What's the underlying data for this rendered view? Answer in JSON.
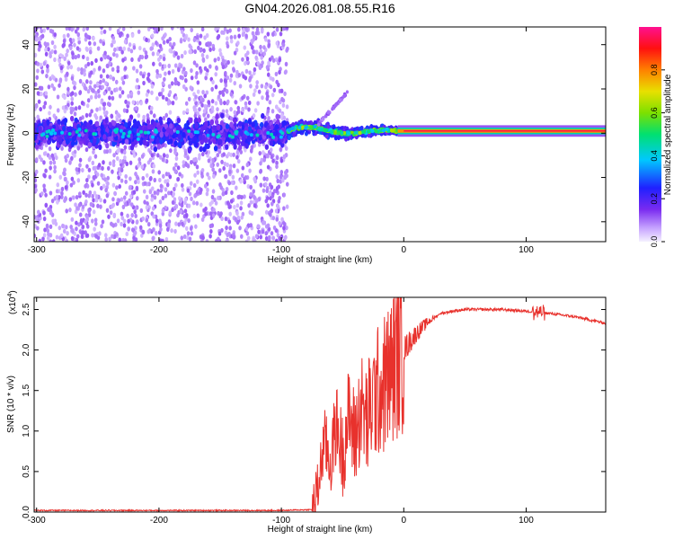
{
  "title": "GN04.2026.081.08.55.R16",
  "colors": {
    "axis": "#000000",
    "snr_line": "#e8312c",
    "background": "#ffffff"
  },
  "chart_data": [
    {
      "type": "heatmap",
      "name": "spectrogram",
      "xlabel": "Height of straight line (km)",
      "ylabel": "Frequency (Hz)",
      "xlim": [
        -302,
        165
      ],
      "ylim": [
        -49,
        48
      ],
      "xticks": [
        -300,
        -200,
        -100,
        0,
        100
      ],
      "yticks": [
        -40,
        -20,
        0,
        20,
        40
      ],
      "xtick_labels": [
        "-300",
        "-200",
        "-100",
        "0",
        "100"
      ],
      "ytick_labels": [
        "-40",
        "-20",
        "0",
        "20",
        "40"
      ],
      "colormap": "rainbow (purple-blue-cyan-green-yellow-red-magenta)",
      "colorbar": {
        "label": "Normalized spectral amplitude",
        "range": [
          0,
          1
        ],
        "ticks": [
          0.0,
          0.2,
          0.4,
          0.6,
          0.8
        ],
        "tick_labels": [
          "0.0",
          "0.2",
          "0.4",
          "0.6",
          "0.8"
        ]
      },
      "features": [
        {
          "region": "-302 to -95 km",
          "description": "broadband noise, low amplitude scatter"
        },
        {
          "region": "-95 to 0 km",
          "description": "signal emerges around 0 Hz with oscillation"
        },
        {
          "region": "0 to 165 km",
          "description": "strong narrow line at ~1 Hz, amplitude near 1.0"
        }
      ]
    },
    {
      "type": "line",
      "name": "snr",
      "xlabel": "Height of straight line (km)",
      "ylabel": "SNR (10 * v/v)",
      "y_multiplier": "(x10",
      "y_multiplier_exp": "4",
      "y_multiplier_close": ")",
      "xlim": [
        -302,
        165
      ],
      "ylim": [
        0,
        2.65
      ],
      "xticks": [
        -300,
        -200,
        -100,
        0,
        100
      ],
      "yticks": [
        0.0,
        0.5,
        1.0,
        1.5,
        2.0,
        2.5
      ],
      "xtick_labels": [
        "-300",
        "-200",
        "-100",
        "0",
        "100"
      ],
      "ytick_labels": [
        "0.0",
        "0.5",
        "1.0",
        "1.5",
        "2.0",
        "2.5"
      ],
      "series": [
        {
          "name": "SNR",
          "x": [
            -302,
            -100,
            -75,
            -70,
            -65,
            -60,
            -55,
            -50,
            -45,
            -40,
            -35,
            -30,
            -25,
            -20,
            -15,
            -10,
            -5,
            0,
            10,
            20,
            30,
            40,
            50,
            60,
            80,
            100,
            110,
            120,
            140,
            165
          ],
          "y": [
            0.02,
            0.02,
            0.03,
            0.3,
            0.9,
            0.6,
            1.1,
            0.7,
            1.2,
            0.9,
            1.3,
            1.1,
            1.4,
            1.5,
            1.6,
            1.75,
            1.9,
            2.0,
            2.2,
            2.35,
            2.45,
            2.48,
            2.5,
            2.5,
            2.5,
            2.48,
            2.47,
            2.45,
            2.41,
            2.33
          ]
        }
      ]
    }
  ]
}
